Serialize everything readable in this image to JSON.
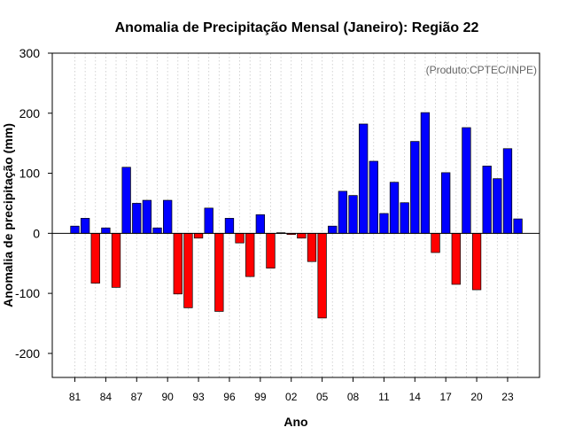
{
  "chart_data": {
    "type": "bar",
    "title": "Anomalia de Precipitação Mensal (Janeiro): Região 22",
    "xlabel": "Ano",
    "ylabel": "Anomalia de precipitação (mm)",
    "credit": "(Produto:CPTEC/INPE)",
    "ylim": [
      -240,
      300
    ],
    "yticks": [
      "300",
      "200",
      "100",
      "0",
      "-100",
      "-200"
    ],
    "ytick_values": [
      300,
      200,
      100,
      0,
      -100,
      -200
    ],
    "xtick_labels": [
      "81",
      "84",
      "87",
      "90",
      "93",
      "96",
      "99",
      "02",
      "05",
      "08",
      "11",
      "14",
      "17",
      "20",
      "23"
    ],
    "xtick_years": [
      1981,
      1984,
      1987,
      1990,
      1993,
      1996,
      1999,
      2002,
      2005,
      2008,
      2011,
      2014,
      2017,
      2020,
      2023
    ],
    "grid": true,
    "categories": [
      1981,
      1982,
      1983,
      1984,
      1985,
      1986,
      1987,
      1988,
      1989,
      1990,
      1991,
      1992,
      1993,
      1994,
      1995,
      1996,
      1997,
      1998,
      1999,
      2000,
      2001,
      2002,
      2003,
      2004,
      2005,
      2006,
      2007,
      2008,
      2009,
      2010,
      2011,
      2012,
      2013,
      2014,
      2015,
      2016,
      2017,
      2018,
      2019,
      2020,
      2021,
      2022,
      2023,
      2024
    ],
    "values": [
      12,
      25,
      -83,
      9,
      -90,
      110,
      50,
      55,
      9,
      55,
      -101,
      -124,
      -8,
      42,
      -130,
      25,
      -16,
      -72,
      31,
      -58,
      1,
      -2,
      -8,
      -47,
      -141,
      12,
      70,
      63,
      182,
      120,
      33,
      85,
      51,
      153,
      201,
      -32,
      101,
      -85,
      176,
      -94,
      112,
      91,
      141,
      24
    ],
    "positive_color": "#0000ff",
    "negative_color": "#ff0000",
    "zero_line_color": "#000000",
    "grid_color": "#c8c8c8"
  }
}
